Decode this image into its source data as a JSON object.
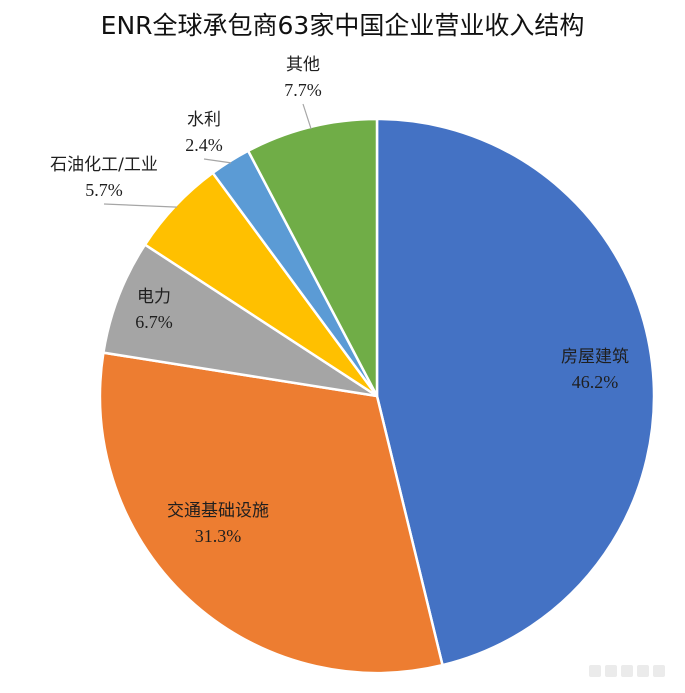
{
  "title": "ENR全球承包商63家中国企业营业收入结构",
  "chart_data": {
    "type": "pie",
    "title": "ENR全球承包商63家中国企业营业收入结构",
    "categories": [
      "房屋建筑",
      "交通基础设施",
      "电力",
      "石油化工/工业",
      "水利",
      "其他"
    ],
    "values": [
      46.2,
      31.3,
      6.7,
      5.7,
      2.4,
      7.7
    ],
    "value_labels": [
      "46.2%",
      "31.3%",
      "6.7%",
      "5.7%",
      "2.4%",
      "7.7%"
    ],
    "colors": [
      "#4472c4",
      "#ed7d31",
      "#a5a5a5",
      "#ffc000",
      "#5b9bd5",
      "#70ad47"
    ],
    "legend": "none"
  }
}
